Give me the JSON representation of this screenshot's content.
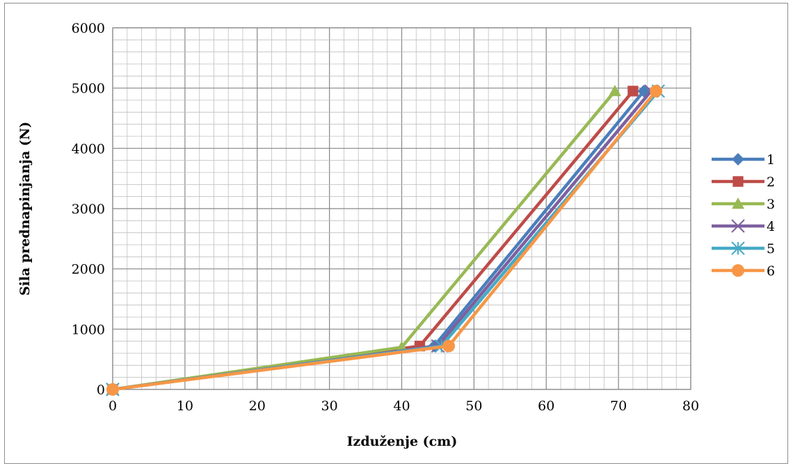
{
  "chart_data": {
    "type": "line",
    "title": "",
    "xlabel": "Izduženje (cm)",
    "ylabel": "Sila prednapinjanja (N)",
    "xlim": [
      0,
      80
    ],
    "ylim": [
      0,
      6000
    ],
    "x_major_ticks": [
      0,
      10,
      20,
      30,
      40,
      50,
      60,
      70,
      80
    ],
    "y_major_ticks": [
      0,
      1000,
      2000,
      3000,
      4000,
      5000,
      6000
    ],
    "x_tick_labels": [
      "0",
      "10",
      "20",
      "30",
      "40",
      "50",
      "60",
      "70",
      "80"
    ],
    "y_tick_labels": [
      "0",
      "1000",
      "2000",
      "3000",
      "4000",
      "5000",
      "6000"
    ],
    "x_minor_step": 2,
    "y_minor_step": 200,
    "grid": true,
    "legend_position": "right",
    "series": [
      {
        "name": "1",
        "color": "#4a7ebb",
        "marker": "diamond",
        "x": [
          0,
          44.5,
          73.5
        ],
        "y": [
          0,
          720,
          4950
        ]
      },
      {
        "name": "2",
        "color": "#be4b48",
        "marker": "square",
        "x": [
          0,
          42.5,
          72
        ],
        "y": [
          0,
          720,
          4950
        ]
      },
      {
        "name": "3",
        "color": "#98b954",
        "marker": "triangle",
        "x": [
          0,
          40,
          69.5
        ],
        "y": [
          0,
          700,
          4950
        ]
      },
      {
        "name": "4",
        "color": "#7d60a0",
        "marker": "x",
        "x": [
          0,
          45,
          74.5
        ],
        "y": [
          0,
          720,
          4950
        ]
      },
      {
        "name": "5",
        "color": "#46aac5",
        "marker": "star",
        "x": [
          0,
          45.5,
          75.5
        ],
        "y": [
          0,
          720,
          4950
        ]
      },
      {
        "name": "6",
        "color": "#f79646",
        "marker": "circle",
        "x": [
          0,
          46.5,
          75.2
        ],
        "y": [
          0,
          720,
          4950
        ]
      }
    ]
  }
}
